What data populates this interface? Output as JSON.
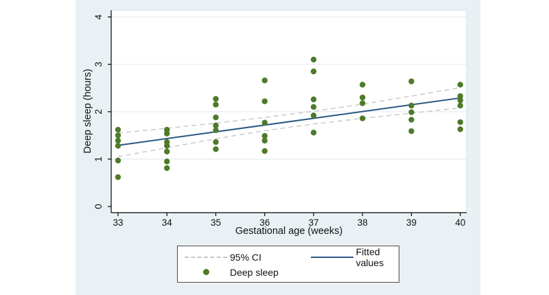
{
  "figure": {
    "canvas_bg": "#eaf1f5",
    "plot_bg": "#ffffff",
    "gridline_color": "#e7eef3",
    "border_color": "#d5dfe6",
    "axis_color": "#000000"
  },
  "chart_data": {
    "type": "scatter",
    "title": "",
    "xlabel": "Gestational age (weeks)",
    "ylabel": "Deep sleep (hours)",
    "x_ticks": [
      33,
      34,
      35,
      36,
      37,
      38,
      39,
      40
    ],
    "y_ticks": [
      0,
      1,
      2,
      3,
      4
    ],
    "xlim": [
      32.86,
      40.13
    ],
    "ylim": [
      -0.13,
      4.14
    ],
    "grid": "horizontal",
    "legend_position": "bottom-center",
    "series": [
      {
        "name": "Deep sleep",
        "type": "scatter",
        "color": "#4e7a2a",
        "points": [
          [
            33,
            1.62
          ],
          [
            33,
            1.5
          ],
          [
            33,
            1.39
          ],
          [
            33,
            1.28
          ],
          [
            33,
            0.97
          ],
          [
            33,
            0.62
          ],
          [
            34,
            1.62
          ],
          [
            34,
            1.54
          ],
          [
            34,
            1.36
          ],
          [
            34,
            1.28
          ],
          [
            34,
            1.16
          ],
          [
            34,
            0.95
          ],
          [
            34,
            0.81
          ],
          [
            35,
            2.27
          ],
          [
            35,
            2.15
          ],
          [
            35,
            1.88
          ],
          [
            35,
            1.71
          ],
          [
            35,
            1.61
          ],
          [
            35,
            1.36
          ],
          [
            35,
            1.21
          ],
          [
            36,
            2.66
          ],
          [
            36,
            2.22
          ],
          [
            36,
            1.77
          ],
          [
            36,
            1.49
          ],
          [
            36,
            1.39
          ],
          [
            36,
            1.17
          ],
          [
            37,
            3.1
          ],
          [
            37,
            2.85
          ],
          [
            37,
            2.26
          ],
          [
            37,
            2.1
          ],
          [
            37,
            1.92
          ],
          [
            37,
            1.56
          ],
          [
            38,
            2.57
          ],
          [
            38,
            2.3
          ],
          [
            38,
            2.18
          ],
          [
            38,
            1.86
          ],
          [
            39,
            2.64
          ],
          [
            39,
            2.13
          ],
          [
            39,
            1.99
          ],
          [
            39,
            1.83
          ],
          [
            39,
            1.59
          ],
          [
            40,
            2.57
          ],
          [
            40,
            2.33
          ],
          [
            40,
            2.24
          ],
          [
            40,
            2.13
          ],
          [
            40,
            1.78
          ],
          [
            40,
            1.63
          ]
        ]
      },
      {
        "name": "Fitted values",
        "type": "line",
        "color": "#2a5783",
        "points": [
          [
            33,
            1.29
          ],
          [
            40,
            2.29
          ]
        ]
      },
      {
        "name": "95% CI",
        "type": "band",
        "style": "dashed",
        "color": "#c6c6c6",
        "x": [
          33,
          34,
          35,
          36,
          37,
          38,
          39,
          40
        ],
        "upper": [
          1.55,
          1.65,
          1.76,
          1.88,
          2.01,
          2.16,
          2.33,
          2.51
        ],
        "lower": [
          1.05,
          1.24,
          1.43,
          1.6,
          1.74,
          1.86,
          1.97,
          2.08
        ]
      }
    ]
  },
  "legend": {
    "items": [
      {
        "label": "95% CI",
        "swatch": "dashed-line"
      },
      {
        "label": "Fitted values",
        "swatch": "solid-line"
      },
      {
        "label": "Deep sleep",
        "swatch": "dot"
      }
    ]
  }
}
